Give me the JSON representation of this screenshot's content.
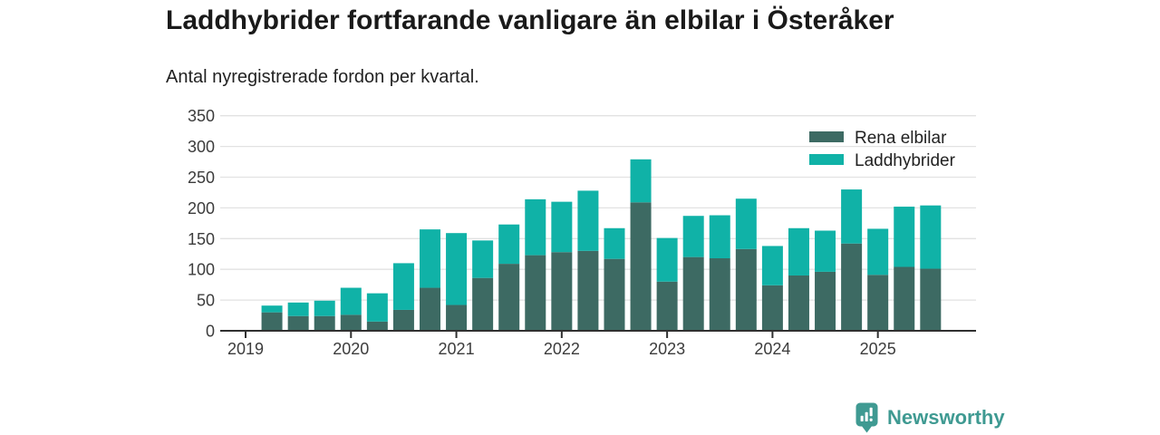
{
  "header": {
    "title": "Laddhybrider fortfarande vanligare än elbilar i Österåker",
    "subtitle": "Antal nyregistrerade fordon per kvartal."
  },
  "colors": {
    "rena_elbilar": "#3d6a63",
    "laddhybrider": "#10b2a7",
    "axis": "#303030",
    "gridline": "#e2e2e2",
    "tick_label": "#3c3c3c",
    "legend_text": "#222222",
    "brand_teal": "#3f9a92"
  },
  "chart_data": {
    "type": "bar",
    "stacked": true,
    "title": "Laddhybrider fortfarande vanligare än elbilar i Österåker",
    "subtitle": "Antal nyregistrerade fordon per kvartal.",
    "xlabel": "",
    "ylabel": "Antal nyregistrerade fordon",
    "ylim": [
      0,
      350
    ],
    "y_ticks": [
      0,
      50,
      100,
      150,
      200,
      250,
      300,
      350
    ],
    "x_tick_labels": [
      "2019",
      "2020",
      "2021",
      "2022",
      "2023",
      "2024",
      "2025"
    ],
    "grid": true,
    "legend_position": "top-right",
    "categories": [
      "2019 Q2",
      "2019 Q3",
      "2019 Q4",
      "2020 Q1",
      "2020 Q2",
      "2020 Q3",
      "2020 Q4",
      "2021 Q1",
      "2021 Q2",
      "2021 Q3",
      "2021 Q4",
      "2022 Q1",
      "2022 Q2",
      "2022 Q3",
      "2022 Q4",
      "2023 Q1",
      "2023 Q2",
      "2023 Q3",
      "2023 Q4",
      "2024 Q1",
      "2024 Q2",
      "2024 Q3",
      "2024 Q4",
      "2025 Q1",
      "2025 Q2",
      "2025 Q3"
    ],
    "series": [
      {
        "name": "Rena elbilar",
        "color": "#3d6a63",
        "values": [
          30,
          24,
          24,
          26,
          15,
          34,
          70,
          42,
          86,
          109,
          123,
          128,
          130,
          117,
          209,
          80,
          120,
          118,
          133,
          74,
          90,
          96,
          142,
          91,
          104,
          101
        ]
      },
      {
        "name": "Laddhybrider",
        "color": "#10b2a7",
        "values": [
          11,
          22,
          25,
          44,
          46,
          76,
          95,
          117,
          61,
          64,
          91,
          82,
          98,
          50,
          70,
          71,
          67,
          70,
          82,
          64,
          77,
          67,
          88,
          75,
          98,
          103
        ]
      }
    ]
  },
  "footer": {
    "brand": "Newsworthy"
  }
}
